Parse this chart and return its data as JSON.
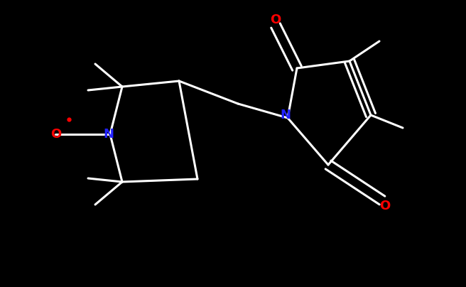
{
  "background_color": "#000000",
  "bond_color": "#ffffff",
  "N_color": "#2222ff",
  "O_color": "#ff0000",
  "bond_width": 2.2,
  "fig_width": 6.56,
  "fig_height": 4.04,
  "dpi": 100,
  "xlim": [
    0,
    6.56
  ],
  "ylim": [
    0,
    4.04
  ],
  "font_size": 13
}
